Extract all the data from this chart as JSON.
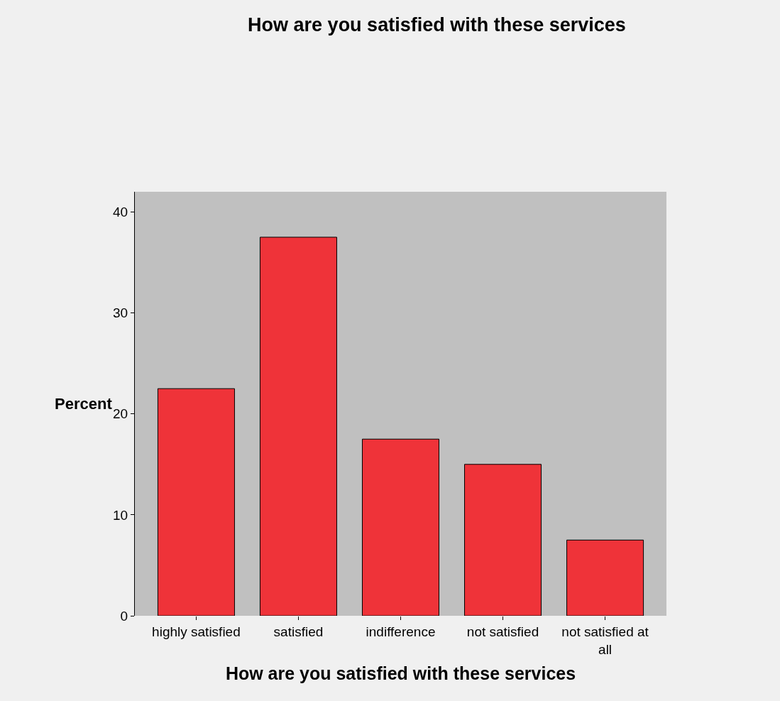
{
  "chart_data": {
    "type": "bar",
    "title": "How are you satisfied with these services",
    "xlabel": "How are you satisfied with these services",
    "ylabel": "Percent",
    "categories": [
      "highly satisfied",
      "satisfied",
      "indifference",
      "not satisfied",
      "not satisfied at all"
    ],
    "values": [
      22.5,
      37.5,
      17.5,
      15,
      7.5
    ],
    "color": "#ef3339",
    "ylim": [
      0,
      42
    ],
    "yticks": [
      0,
      10,
      20,
      30,
      40
    ],
    "grid": false
  }
}
